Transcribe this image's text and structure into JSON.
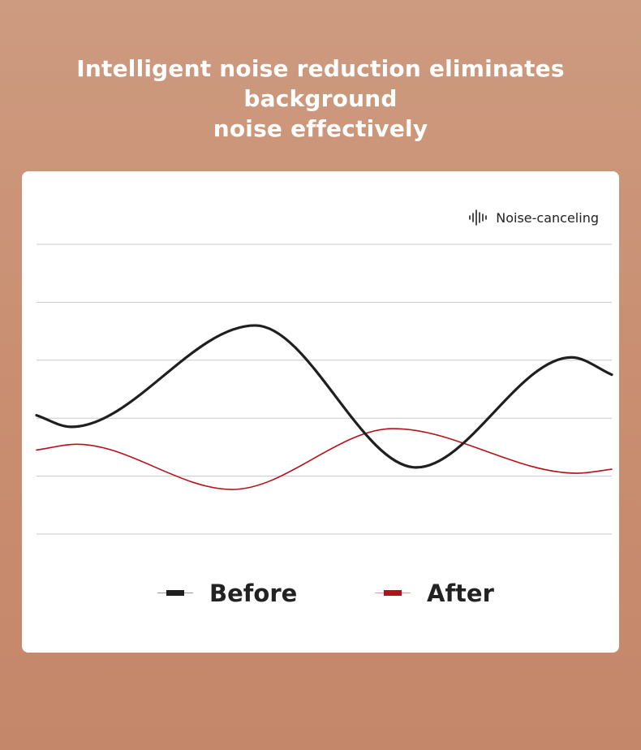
{
  "headline": {
    "line1": "Intelligent noise reduction eliminates background",
    "line2": "noise effectively"
  },
  "badge": {
    "icon": "sound-wave-icon",
    "label": "Noise-canceling"
  },
  "colors": {
    "before": "#1f1f1f",
    "after": "#b5111b",
    "grid": "#c8c8c8"
  },
  "chart_data": {
    "type": "line",
    "title": "",
    "xlabel": "",
    "ylabel": "",
    "grid": true,
    "xlim": [
      0,
      10
    ],
    "ylim": [
      0,
      5
    ],
    "legend_position": "bottom",
    "series": [
      {
        "name": "Before",
        "x": [
          0,
          0.6,
          3.8,
          6.6,
          9.3,
          10
        ],
        "y": [
          2.05,
          1.85,
          3.6,
          1.15,
          3.05,
          2.75
        ]
      },
      {
        "name": "After",
        "x": [
          0,
          0.7,
          3.4,
          6.2,
          9.4,
          10
        ],
        "y": [
          1.45,
          1.55,
          0.77,
          1.82,
          1.05,
          1.12
        ]
      }
    ]
  }
}
